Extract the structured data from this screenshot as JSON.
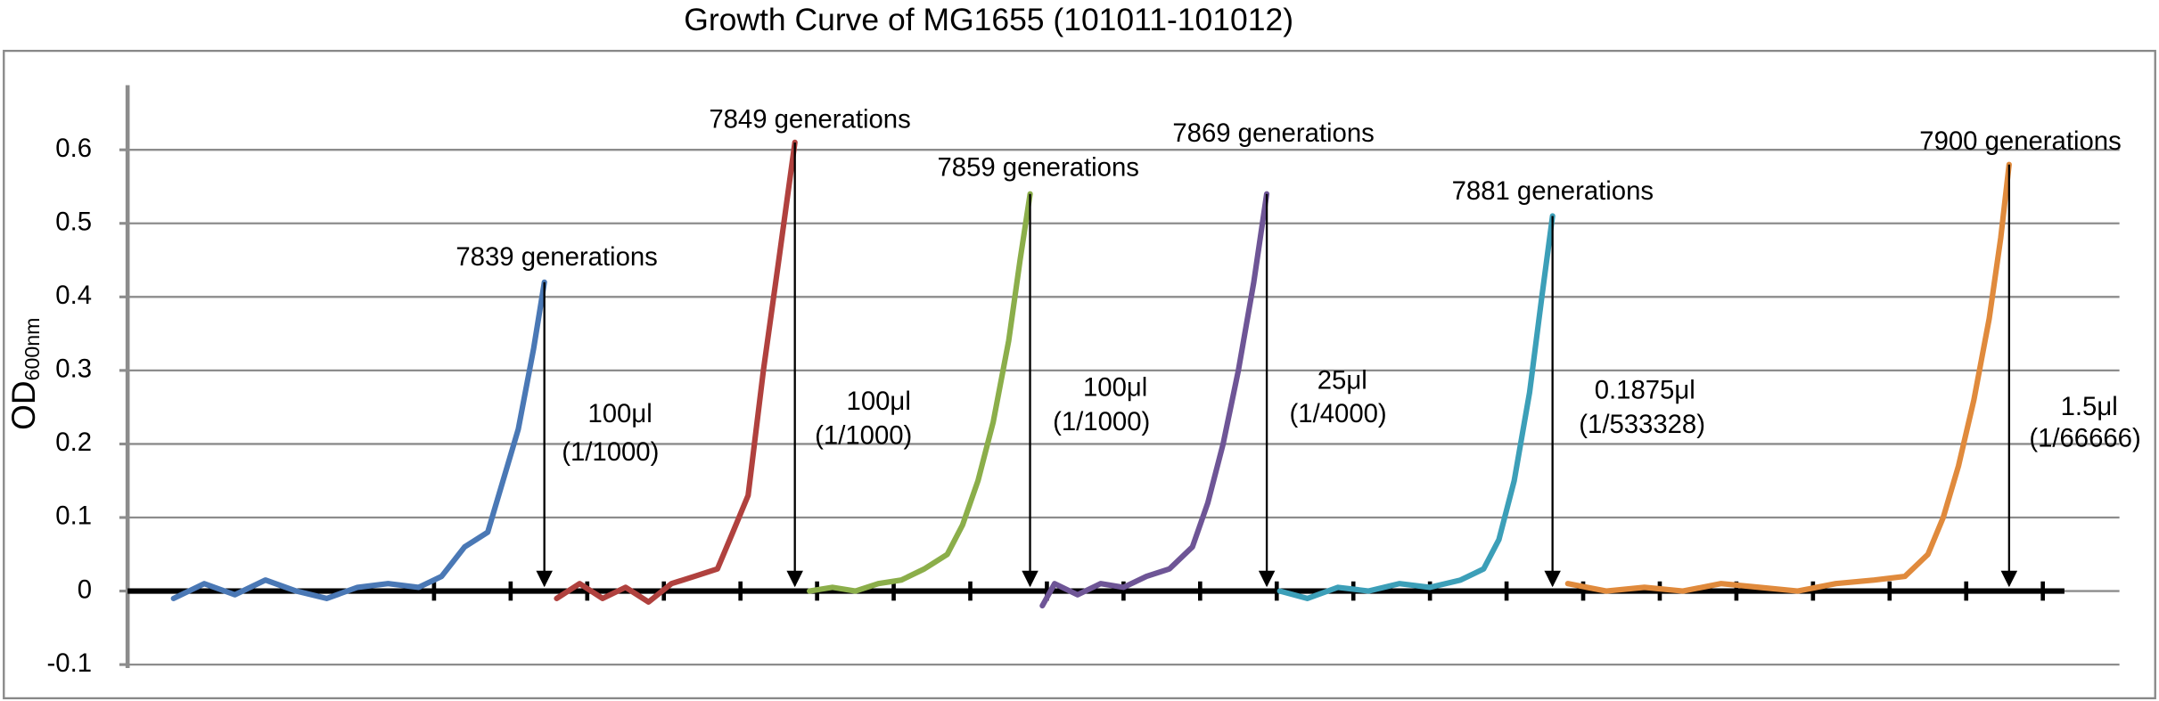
{
  "chart_data": {
    "type": "line",
    "title": "Growth Curve of MG1655 (101011-101012)",
    "ylabel": "OD",
    "ylabel_sub": "600nm",
    "xlim": [
      0,
      26
    ],
    "xticks": [
      4,
      5,
      6,
      7,
      8,
      9,
      10,
      11,
      12,
      13,
      14,
      15,
      16,
      17,
      18,
      19,
      20,
      21,
      22,
      23,
      24,
      25
    ],
    "ylim": [
      -0.1,
      0.7
    ],
    "yticks": [
      -0.1,
      0,
      0.1,
      0.2,
      0.3,
      0.4,
      0.5,
      0.6
    ],
    "grid": true,
    "series": [
      {
        "name": "7839 generations",
        "color": "#4a78b5",
        "x": [
          0.6,
          1,
          1.4,
          1.8,
          2.2,
          2.6,
          3,
          3.4,
          3.8,
          4.1,
          4.4,
          4.7,
          4.9,
          5.1,
          5.3,
          5.44
        ],
        "values": [
          -0.01,
          0.01,
          -0.005,
          0.015,
          0,
          -0.01,
          0.005,
          0.01,
          0.005,
          0.02,
          0.06,
          0.08,
          0.15,
          0.22,
          0.33,
          0.42
        ],
        "note": [
          "100μl",
          "(1/1000)"
        ]
      },
      {
        "name": "7849 generations",
        "color": "#b0413e",
        "x": [
          5.6,
          5.9,
          6.2,
          6.5,
          6.8,
          7.1,
          7.4,
          7.7,
          7.9,
          8.1,
          8.3,
          8.5,
          8.71
        ],
        "values": [
          -0.01,
          0.01,
          -0.01,
          0.005,
          -0.015,
          0.01,
          0.02,
          0.03,
          0.08,
          0.13,
          0.3,
          0.45,
          0.61
        ],
        "note": [
          "100μl",
          "(1/1000)"
        ]
      },
      {
        "name": "7859 generations",
        "color": "#8bae4a",
        "x": [
          8.9,
          9.2,
          9.5,
          9.8,
          10.1,
          10.4,
          10.7,
          10.9,
          11.1,
          11.3,
          11.5,
          11.65,
          11.78
        ],
        "values": [
          0,
          0.005,
          0,
          0.01,
          0.015,
          0.03,
          0.05,
          0.09,
          0.15,
          0.23,
          0.34,
          0.45,
          0.54
        ],
        "note": [
          "100μl",
          "(1/1000)"
        ]
      },
      {
        "name": "7869 generations",
        "color": "#6e5596",
        "x": [
          11.94,
          12.1,
          12.4,
          12.7,
          13.0,
          13.3,
          13.6,
          13.9,
          14.1,
          14.3,
          14.5,
          14.7,
          14.87
        ],
        "values": [
          -0.02,
          0.01,
          -0.005,
          0.01,
          0.005,
          0.02,
          0.03,
          0.06,
          0.12,
          0.2,
          0.3,
          0.42,
          0.54
        ],
        "note": [
          "25μl",
          "(1/4000)"
        ]
      },
      {
        "name": "7881 generations",
        "color": "#3c9fb8",
        "x": [
          15.04,
          15.4,
          15.8,
          16.2,
          16.6,
          17.0,
          17.4,
          17.7,
          17.9,
          18.1,
          18.3,
          18.46,
          18.6
        ],
        "values": [
          0,
          -0.01,
          0.005,
          0,
          0.01,
          0.005,
          0.015,
          0.03,
          0.07,
          0.15,
          0.27,
          0.4,
          0.51
        ],
        "note": [
          "0.1875μl",
          "(1/533328)"
        ]
      },
      {
        "name": "7900 generations",
        "color": "#e08a3c",
        "x": [
          18.8,
          19.3,
          19.8,
          20.3,
          20.8,
          21.3,
          21.8,
          22.3,
          22.8,
          23.2,
          23.5,
          23.7,
          23.9,
          24.1,
          24.3,
          24.45,
          24.56
        ],
        "values": [
          0.01,
          0,
          0.005,
          0,
          0.01,
          0.005,
          0,
          0.01,
          0.015,
          0.02,
          0.05,
          0.1,
          0.17,
          0.26,
          0.37,
          0.48,
          0.58
        ],
        "note": [
          "1.5μl",
          "(1/66666)"
        ]
      }
    ]
  }
}
